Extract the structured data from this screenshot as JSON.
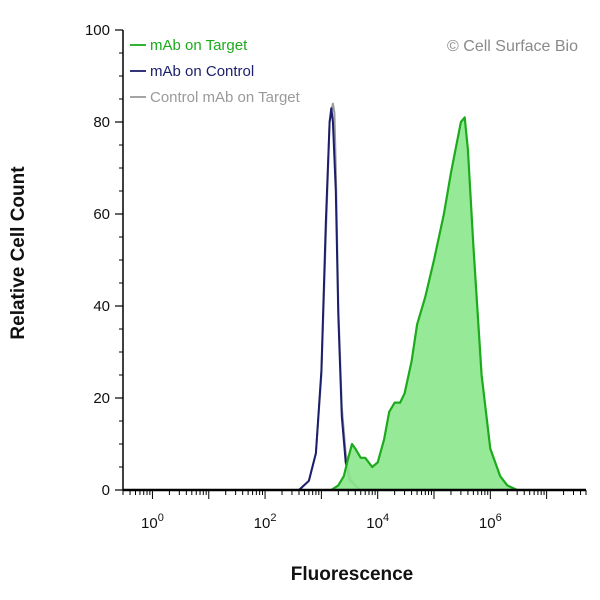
{
  "chart_data": {
    "type": "area",
    "xlabel": "Fluorescence",
    "ylabel": "Relative Cell Count",
    "x_scale": "log10",
    "xlim": [
      0.3,
      50000000
    ],
    "ylim": [
      0,
      100
    ],
    "y_ticks": [
      0,
      20,
      40,
      60,
      80,
      100
    ],
    "x_ticks": [
      {
        "value": 1,
        "base": "10",
        "exp": "0"
      },
      {
        "value": 100,
        "base": "10",
        "exp": "2"
      },
      {
        "value": 10000,
        "base": "10",
        "exp": "4"
      },
      {
        "value": 1000000,
        "base": "10",
        "exp": "6"
      }
    ],
    "grid": false,
    "legend_position": "top-left",
    "annotation": "© Cell Surface Bio",
    "series": [
      {
        "name": "Control mAb on Target",
        "color": "#9a9a9a",
        "fill": false,
        "x": [
          400,
          600,
          800,
          1000,
          1200,
          1400,
          1600,
          1700,
          1800,
          2000,
          2300,
          2700,
          3200,
          4000,
          5000
        ],
        "y": [
          0,
          2,
          8,
          25,
          55,
          80,
          84,
          82,
          70,
          40,
          18,
          8,
          3,
          1,
          0
        ]
      },
      {
        "name": "mAb on Control",
        "color": "#1b1f6b",
        "fill": false,
        "x": [
          400,
          600,
          800,
          1000,
          1200,
          1400,
          1500,
          1600,
          1800,
          2000,
          2300,
          2700,
          3200,
          4000,
          5000
        ],
        "y": [
          0,
          2,
          8,
          26,
          58,
          80,
          83,
          80,
          65,
          38,
          16,
          6,
          2,
          1,
          0
        ]
      },
      {
        "name": "mAb on Target",
        "color": "#1cab1c",
        "fill": true,
        "fill_color": "#90e890",
        "x": [
          1500,
          2000,
          2500,
          3000,
          3500,
          4000,
          5000,
          6000,
          8000,
          10000,
          13000,
          16000,
          20000,
          25000,
          30000,
          40000,
          50000,
          70000,
          100000,
          150000,
          200000,
          300000,
          350000,
          400000,
          500000,
          700000,
          1000000,
          1500000,
          2000000,
          3000000
        ],
        "y": [
          0,
          1,
          3,
          7,
          10,
          9,
          7,
          7,
          5,
          6,
          11,
          17,
          19,
          19,
          21,
          28,
          36,
          42,
          50,
          60,
          69,
          80,
          81,
          74,
          53,
          25,
          9,
          3,
          1,
          0
        ]
      }
    ]
  }
}
